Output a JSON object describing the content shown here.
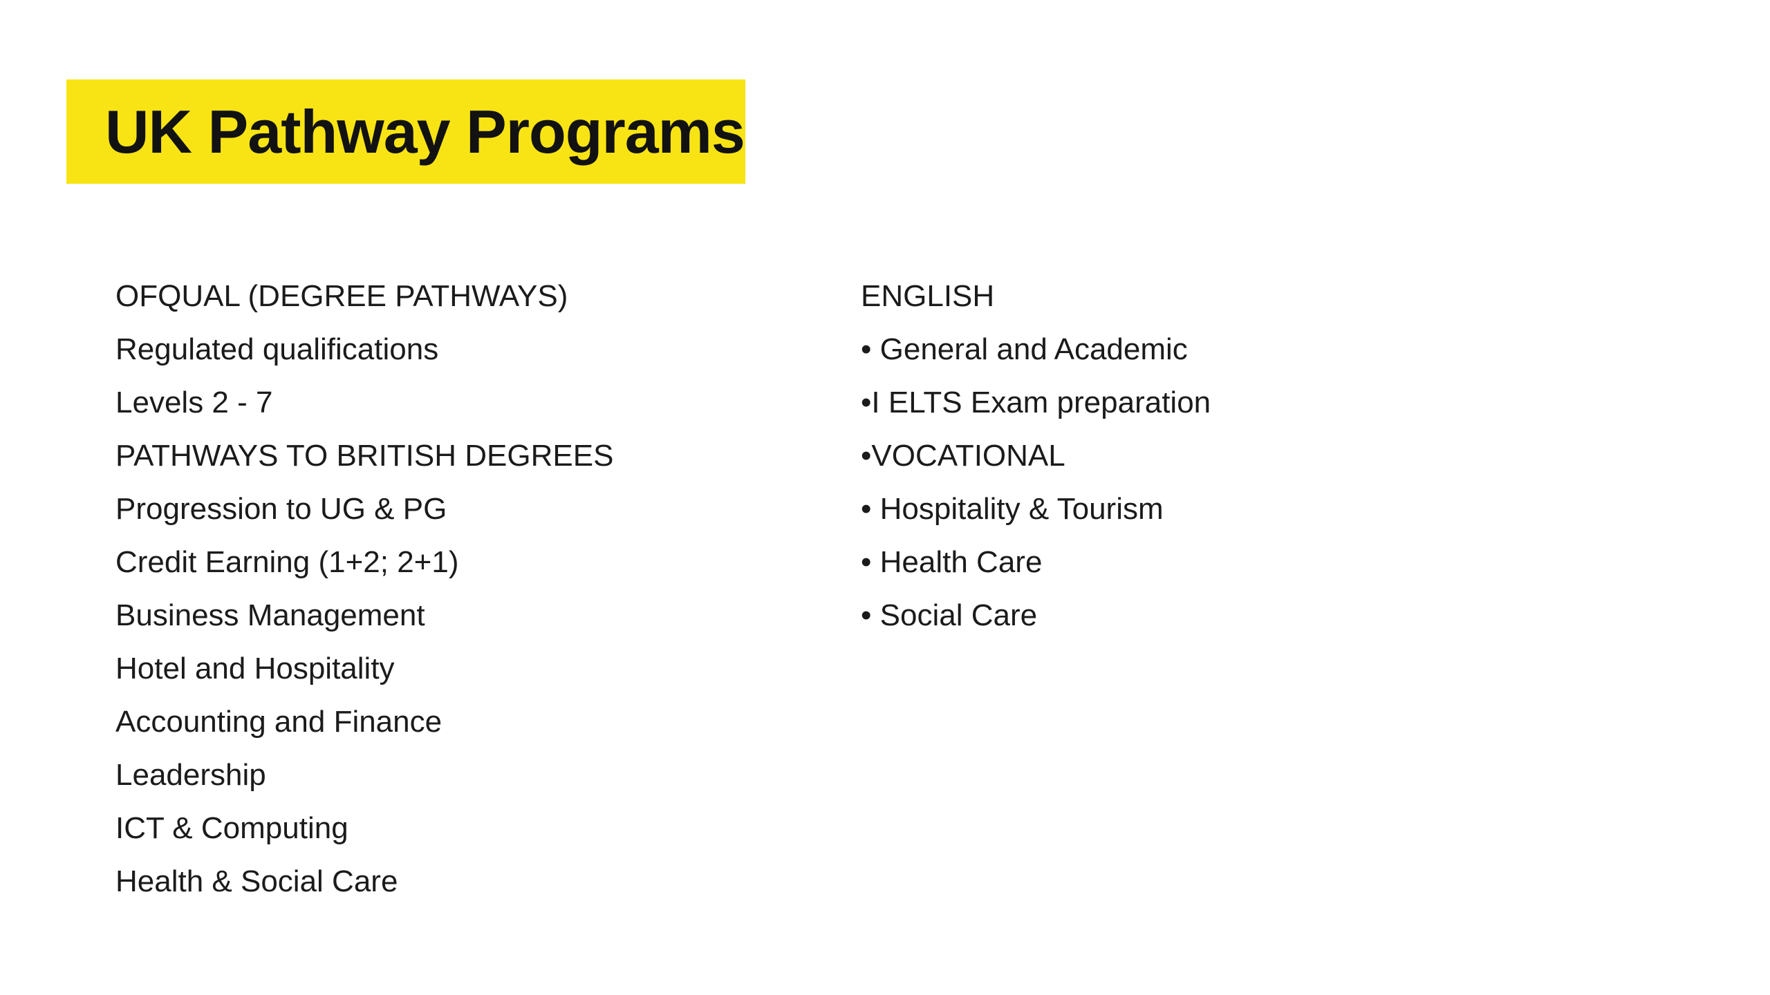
{
  "slide": {
    "title": "UK Pathway Programs",
    "title_highlight_color": "#F8E414",
    "title_text_color": "#121212",
    "body_text_color": "#1B1B1B",
    "background_color": "#FFFFFF"
  },
  "left_column": {
    "items": [
      "OFQUAL (DEGREE PATHWAYS)",
      "Regulated qualifications",
      "Levels 2 - 7",
      "PATHWAYS TO BRITISH DEGREES",
      "Progression to UG & PG",
      "Credit Earning (1+2; 2+1)",
      "Business Management",
      "Hotel and Hospitality",
      "Accounting and Finance",
      "Leadership",
      "ICT & Computing",
      "Health & Social Care"
    ]
  },
  "right_column": {
    "items": [
      "ENGLISH",
      "• General and Academic",
      "•I ELTS Exam preparation",
      "•VOCATIONAL",
      "• Hospitality & Tourism",
      "• Health Care",
      "• Social Care"
    ]
  }
}
